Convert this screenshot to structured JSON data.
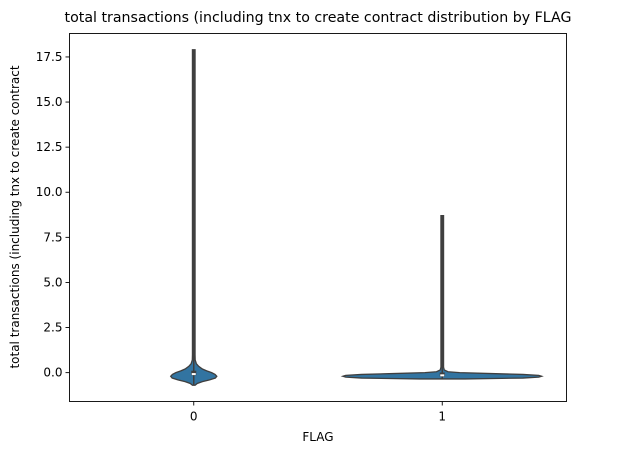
{
  "chart_data": {
    "type": "violin",
    "title": "total transactions (including tnx to create contract distribution by FLAG",
    "xlabel": "FLAG",
    "ylabel": "total transactions (including tnx to create contract",
    "categories": [
      "0",
      "1"
    ],
    "ylim": [
      -1.6,
      18.8
    ],
    "yticks": [
      0.0,
      2.5,
      5.0,
      7.5,
      10.0,
      12.5,
      15.0,
      17.5
    ],
    "ytick_labels": [
      "0.0",
      "2.5",
      "5.0",
      "7.5",
      "10.0",
      "12.5",
      "15.0",
      "17.5"
    ],
    "violins": [
      {
        "category": "0",
        "min": -0.7,
        "max": 17.9,
        "q1": -0.2,
        "median": -0.08,
        "q3": 0.05,
        "profile": [
          [
            -0.7,
            0.04
          ],
          [
            -0.6,
            0.12
          ],
          [
            -0.5,
            0.3
          ],
          [
            -0.4,
            0.55
          ],
          [
            -0.3,
            0.75
          ],
          [
            -0.2,
            0.8
          ],
          [
            -0.1,
            0.74
          ],
          [
            0.0,
            0.62
          ],
          [
            0.1,
            0.45
          ],
          [
            0.2,
            0.3
          ],
          [
            0.35,
            0.17
          ],
          [
            0.5,
            0.09
          ],
          [
            0.7,
            0.05
          ],
          [
            1.0,
            0.03
          ],
          [
            2.0,
            0.02
          ],
          [
            5.0,
            0.017
          ],
          [
            10.0,
            0.015
          ],
          [
            17.9,
            0.012
          ]
        ]
      },
      {
        "category": "1",
        "min": -0.35,
        "max": 8.7,
        "q1": -0.2,
        "median": -0.15,
        "q3": -0.05,
        "profile": [
          [
            -0.35,
            0.8
          ],
          [
            -0.3,
            2.8
          ],
          [
            -0.25,
            3.35
          ],
          [
            -0.2,
            3.45
          ],
          [
            -0.15,
            3.35
          ],
          [
            -0.1,
            2.8
          ],
          [
            -0.05,
            1.7
          ],
          [
            0.0,
            0.6
          ],
          [
            0.05,
            0.2
          ],
          [
            0.15,
            0.07
          ],
          [
            0.3,
            0.03
          ],
          [
            1.0,
            0.02
          ],
          [
            4.0,
            0.017
          ],
          [
            8.7,
            0.015
          ]
        ]
      }
    ],
    "colors": {
      "fill": "#3274a1",
      "edge": "#3f3f3f",
      "median": "#ffffff"
    }
  }
}
